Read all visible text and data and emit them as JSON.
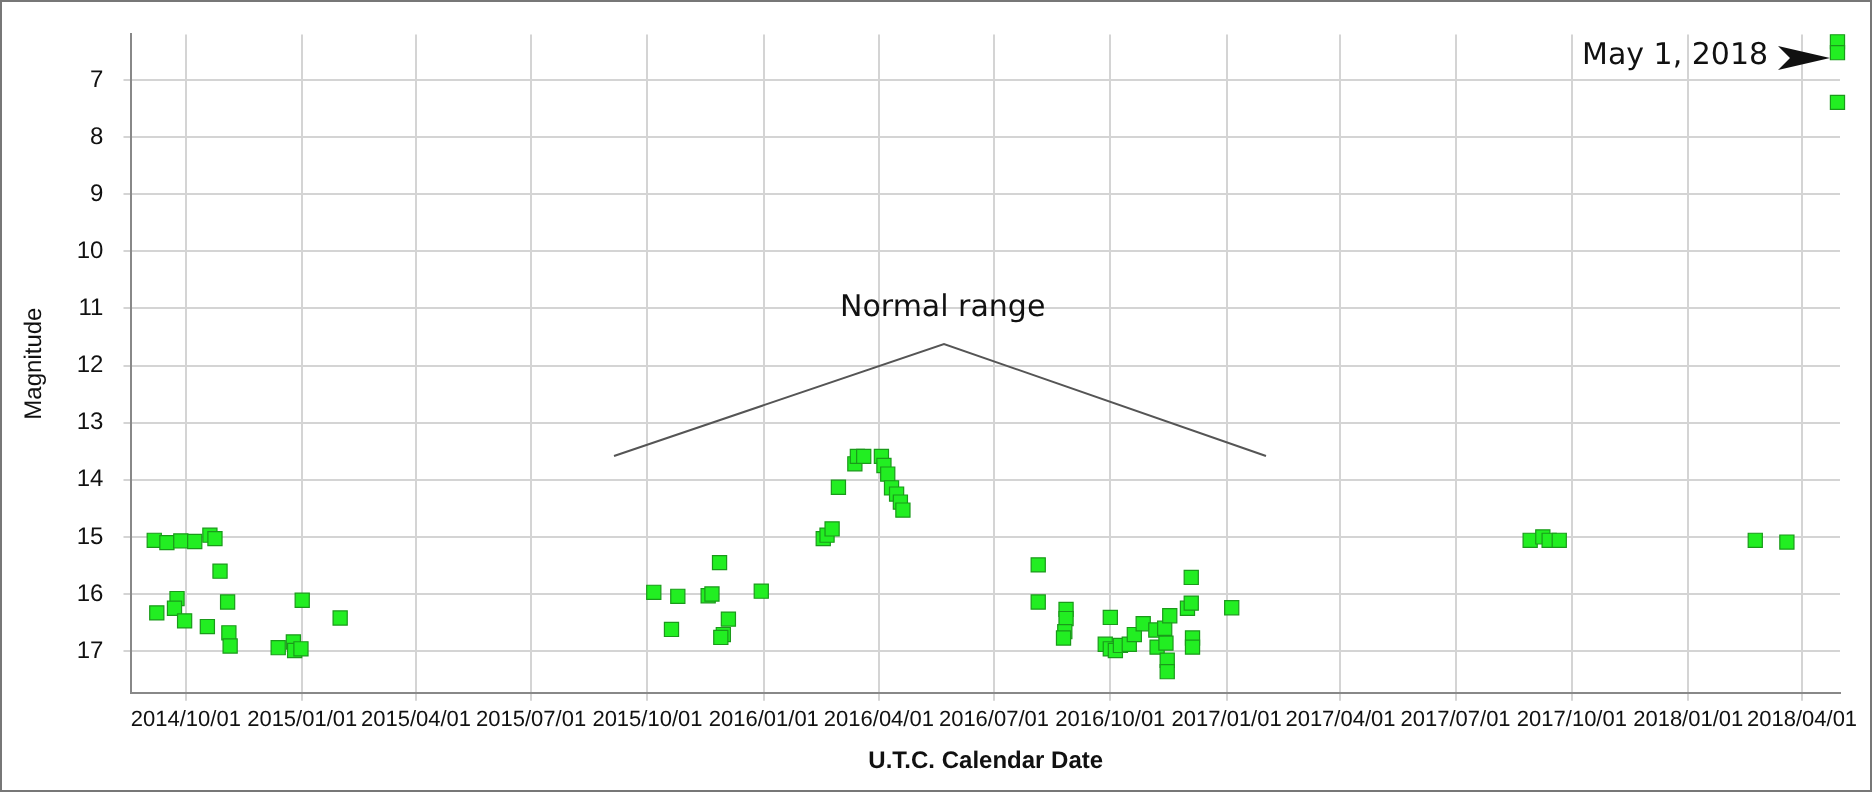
{
  "chart_data": {
    "type": "scatter",
    "xlabel": "U.T.C. Calendar Date",
    "ylabel": "Magnitude",
    "annotations": [
      "Normal range",
      "May 1, 2018"
    ],
    "x": [
      "2014-09-06",
      "2014-09-16",
      "2014-09-27",
      "2014-10-08",
      "2014-10-20",
      "2014-10-24",
      "2014-10-28",
      "2014-09-08",
      "2014-09-24",
      "2014-09-22",
      "2014-09-30",
      "2014-10-18",
      "2014-11-03",
      "2014-11-04",
      "2014-11-05",
      "2014-12-13",
      "2014-12-25",
      "2014-12-26",
      "2014-12-31",
      "2015-01-01",
      "2015-01-31",
      "2015-10-06",
      "2015-10-25",
      "2015-10-20",
      "2015-11-18",
      "2015-11-21",
      "2015-11-27",
      "2015-12-04",
      "2015-11-30",
      "2015-11-28",
      "2015-12-30",
      "2016-02-17",
      "2016-02-20",
      "2016-02-24",
      "2016-02-29",
      "2016-03-13",
      "2016-03-15",
      "2016-03-20",
      "2016-04-03",
      "2016-04-05",
      "2016-04-08",
      "2016-04-11",
      "2016-04-15",
      "2016-04-18",
      "2016-04-20",
      "2016-08-05",
      "2016-08-05",
      "2016-08-27",
      "2016-08-27",
      "2016-08-26",
      "2016-08-25",
      "2016-09-27",
      "2016-10-01",
      "2016-10-05",
      "2016-10-09",
      "2016-10-16",
      "2016-10-20",
      "2016-10-01",
      "2016-10-27",
      "2016-11-06",
      "2016-11-07",
      "2016-11-14",
      "2016-11-15",
      "2016-11-15",
      "2016-11-13",
      "2016-11-17",
      "2016-12-01",
      "2016-12-04",
      "2016-12-04",
      "2016-12-05",
      "2016-12-05",
      "2017-01-05",
      "2017-08-29",
      "2017-09-08",
      "2017-09-13",
      "2017-09-21",
      "2018-02-23",
      "2018-03-20",
      "2018-04-29",
      "2018-04-29",
      "2018-04-29"
    ],
    "series": [
      {
        "color": "#22ee22",
        "values": [
          15.06,
          15.1,
          15.07,
          15.08,
          14.97,
          15.03,
          15.6,
          16.33,
          16.08,
          16.25,
          16.47,
          16.57,
          16.14,
          16.68,
          16.91,
          16.94,
          16.84,
          16.99,
          16.96,
          16.11,
          16.42,
          15.97,
          16.04,
          16.62,
          16.03,
          16.0,
          15.45,
          16.44,
          16.71,
          16.76,
          15.95,
          15.03,
          14.97,
          14.86,
          14.13,
          13.72,
          13.59,
          13.59,
          13.59,
          13.75,
          13.9,
          14.14,
          14.25,
          14.39,
          14.53,
          15.49,
          16.14,
          16.27,
          16.43,
          16.66,
          16.77,
          16.88,
          16.96,
          16.99,
          16.9,
          16.88,
          16.71,
          16.41,
          16.52,
          16.63,
          16.93,
          16.86,
          17.16,
          17.36,
          16.6,
          16.38,
          16.25,
          15.71,
          16.16,
          16.77,
          16.93,
          16.24,
          15.06,
          15.0,
          15.06,
          15.06,
          15.06,
          15.09,
          6.33,
          6.52,
          7.39
        ]
      }
    ],
    "xlim": [
      "2014-08-19",
      "2018-05-01"
    ],
    "xticks": [
      {
        "value": "2014-10-01",
        "label": "2014/10/01"
      },
      {
        "value": "2015-01-01",
        "label": "2015/01/01"
      },
      {
        "value": "2015-04-01",
        "label": "2015/04/01"
      },
      {
        "value": "2015-07-01",
        "label": "2015/07/01"
      },
      {
        "value": "2015-10-01",
        "label": "2015/10/01"
      },
      {
        "value": "2016-01-01",
        "label": "2016/01/01"
      },
      {
        "value": "2016-04-01",
        "label": "2016/04/01"
      },
      {
        "value": "2016-07-01",
        "label": "2016/07/01"
      },
      {
        "value": "2016-10-01",
        "label": "2016/10/01"
      },
      {
        "value": "2017-01-01",
        "label": "2017/01/01"
      },
      {
        "value": "2017-04-01",
        "label": "2017/04/01"
      },
      {
        "value": "2017-07-01",
        "label": "2017/07/01"
      },
      {
        "value": "2017-10-01",
        "label": "2017/10/01"
      },
      {
        "value": "2018-01-01",
        "label": "2018/01/01"
      },
      {
        "value": "2018-04-01",
        "label": "2018/04/01"
      }
    ],
    "ylim": [
      17.73,
      6.2
    ],
    "yticks": [
      7,
      8,
      9,
      10,
      11,
      12,
      13,
      14,
      15,
      16,
      17
    ],
    "grid": true,
    "marker": "square"
  }
}
